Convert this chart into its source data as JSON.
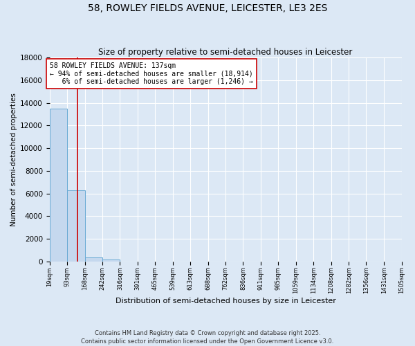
{
  "title": "58, ROWLEY FIELDS AVENUE, LEICESTER, LE3 2ES",
  "subtitle": "Size of property relative to semi-detached houses in Leicester",
  "xlabel": "Distribution of semi-detached houses by size in Leicester",
  "ylabel": "Number of semi-detached properties",
  "bar_edges": [
    19,
    93,
    168,
    242,
    316,
    391,
    465,
    539,
    613,
    688,
    762,
    836,
    911,
    985,
    1059,
    1134,
    1208,
    1282,
    1356,
    1431,
    1505
  ],
  "bar_heights": [
    13500,
    6300,
    350,
    150,
    0,
    0,
    0,
    0,
    0,
    0,
    0,
    0,
    0,
    0,
    0,
    0,
    0,
    0,
    0,
    0
  ],
  "bar_color": "#c5d8ee",
  "bar_edge_color": "#6aaad4",
  "property_size": 137,
  "vline_color": "#cc0000",
  "annotation_text": "58 ROWLEY FIELDS AVENUE: 137sqm\n← 94% of semi-detached houses are smaller (18,914)\n   6% of semi-detached houses are larger (1,246) →",
  "annotation_box_color": "white",
  "annotation_box_edge": "#cc0000",
  "ylim": [
    0,
    18000
  ],
  "yticks": [
    0,
    2000,
    4000,
    6000,
    8000,
    10000,
    12000,
    14000,
    16000,
    18000
  ],
  "tick_labels": [
    "19sqm",
    "93sqm",
    "168sqm",
    "242sqm",
    "316sqm",
    "391sqm",
    "465sqm",
    "539sqm",
    "613sqm",
    "688sqm",
    "762sqm",
    "836sqm",
    "911sqm",
    "985sqm",
    "1059sqm",
    "1134sqm",
    "1208sqm",
    "1282sqm",
    "1356sqm",
    "1431sqm",
    "1505sqm"
  ],
  "footer_text": "Contains HM Land Registry data © Crown copyright and database right 2025.\nContains public sector information licensed under the Open Government Licence v3.0.",
  "bg_color": "#dce8f5",
  "grid_color": "white"
}
